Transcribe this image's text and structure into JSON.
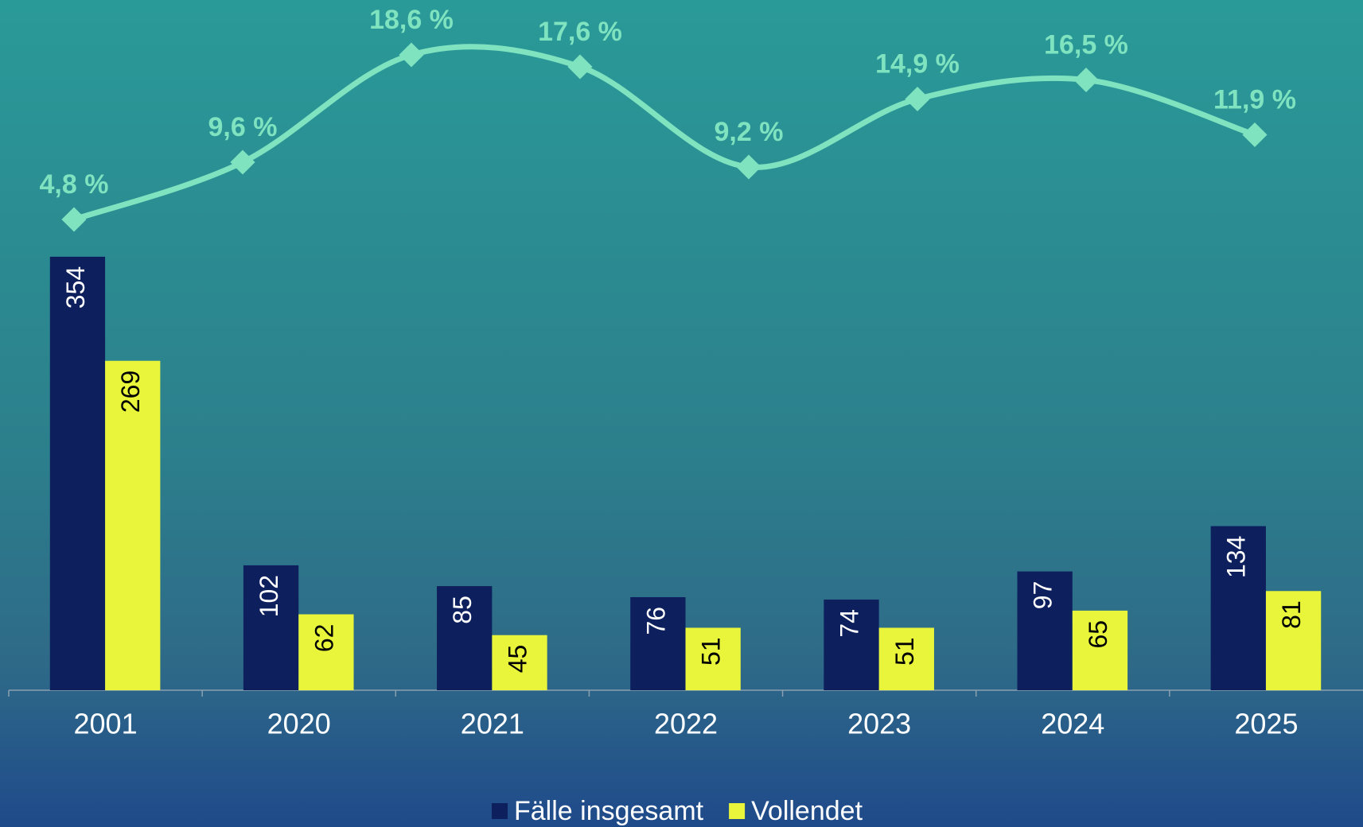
{
  "chart_data": [
    {
      "type": "bar",
      "categories": [
        "2001",
        "2020",
        "2021",
        "2022",
        "2023",
        "2024",
        "2025"
      ],
      "series": [
        {
          "name": "Fälle insgesamt",
          "color": "#0d1f5c",
          "label_color": "#ffffff",
          "values": [
            354,
            102,
            85,
            76,
            74,
            97,
            134
          ]
        },
        {
          "name": "Vollendet",
          "color": "#e8f53a",
          "label_color": "#000000",
          "values": [
            269,
            62,
            45,
            51,
            51,
            65,
            81
          ]
        }
      ],
      "ylim": [
        0,
        400
      ],
      "legend": "bottom"
    },
    {
      "type": "line",
      "categories": [
        null,
        null,
        null,
        null,
        null,
        null,
        null,
        null
      ],
      "values": [
        4.8,
        9.6,
        18.6,
        17.6,
        9.2,
        14.9,
        16.5,
        11.9
      ],
      "value_labels": [
        "4,8 %",
        "9,6 %",
        "18,6 %",
        "17,6 %",
        "9,2 %",
        "14,9 %",
        "16,5 %",
        "11,9 %"
      ],
      "color": "#7fe3c0",
      "ylim": [
        0,
        20
      ]
    }
  ]
}
